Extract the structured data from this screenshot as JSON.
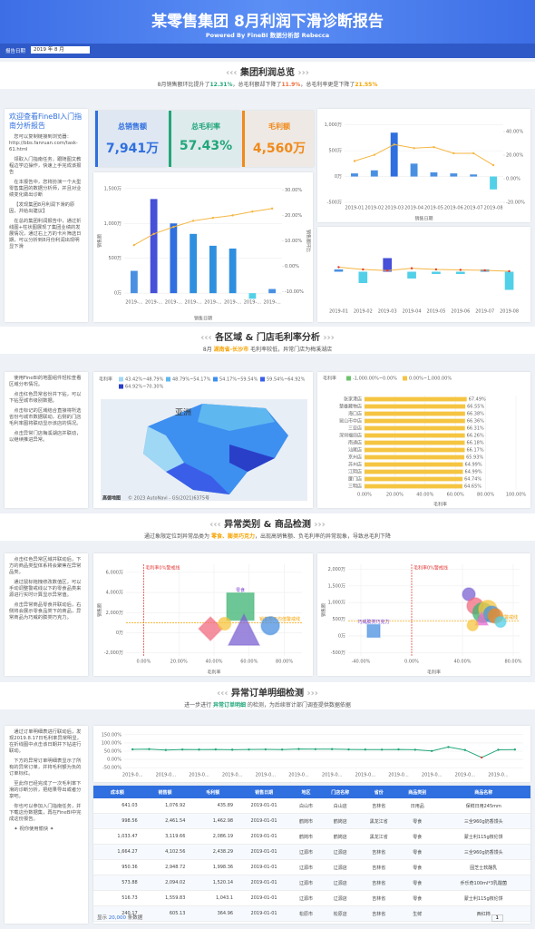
{
  "header": {
    "title": "某零售集团 8月利润下滑诊断报告",
    "subtitle": "Powered By FineBI 数据分析部 Rebecca",
    "filter_label": "报告日期",
    "filter_value": "2019 年 8 月"
  },
  "sections": [
    {
      "title": "集团利润总览",
      "summary": [
        {
          "text": "8月销售额环比提升了"
        },
        {
          "text": "12.31%",
          "color": "#21a67a"
        },
        {
          "text": "，总毛利额却下降了"
        },
        {
          "text": "11.9%",
          "color": "#f26b3a"
        },
        {
          "text": "，总毛利率更是下降了"
        },
        {
          "text": "21.55%",
          "color": "#f5a300"
        }
      ]
    },
    {
      "title": "各区域 & 门店毛利率分析",
      "summary": [
        {
          "text": "8月 "
        },
        {
          "text": "湖南省-长沙市",
          "color": "#f5a300"
        },
        {
          "text": " 毛利率较低，异常门店为梅溪湖店"
        }
      ]
    },
    {
      "title": "异常类别 & 商品检测",
      "summary": [
        {
          "text": "通过象限定位到异常品类为 "
        },
        {
          "text": "零食、膨类巧克力",
          "color": "#f5a300"
        },
        {
          "text": "，出现高销售额、负毛利率的异常现象，导致总毛利下降"
        }
      ]
    },
    {
      "title": "异常订单明细检测",
      "summary": [
        {
          "text": "进一步进行 "
        },
        {
          "text": "异常订单明细",
          "color": "#21a67a"
        },
        {
          "text": " 的检测，为后续审计部门调查提供数据依据"
        }
      ]
    }
  ],
  "notes": [
    {
      "title": "欢迎查看FineBI入门指南分析报告",
      "paragraphs": [
        "您可以复制链接到浏览器：http://bbs.fanruan.com/task-61.html",
        "领取入门指南任务，跟随图文教程边学边操作，快速上手完成该报告",
        "在本报告中，您将扮演一个大型零售集团的数据分析师，并且对业绩变化做出诊断",
        "【发现集团8月利润下滑的原因，并给出建议】",
        "在总的集团利润报告中，通过折线图+柱状图展现了集团业绩的发展情况，通过右上方的卡片筛选日期，可以分析到8月份利润出现明显下滑"
      ]
    },
    {
      "paragraphs": [
        "使用FineBI的地图组件轻松查看区域分布情况。",
        "点击红色异常省份并下钻，可以下钻至城市级别数据。",
        "点击标记的区域结合直接将所选省份与城市数据联动，右侧的门店毛利率图将联动显示该店的情况。",
        "点击异常门店梅溪湖店并联动，以继续推进异常。"
      ]
    },
    {
      "paragraphs": [
        "点击红色异常区域并联动后，下方的商品类型体系将会聚焦在异常品类。",
        "通过鼠标拖拽修改数值区，可以手动调整警戒线以下的零食品类来源进行实时计算显示异常值。",
        "点击异常商品零食并联动后，右侧将会展示零食品类下的商品，异常商品为巧威的膨类巧克力。"
      ]
    },
    {
      "paragraphs": [
        "通过订单明细表进行联动后，发现2019.8.17日毛利率异常明显，在折线图中点击该日期并下钻进行联动。",
        "下方的异常订单明细表显示了所有的异常订单，并将毛利额为负的订单标红。",
        "至此你已经完成了一次毛利率下滑的诊断分析，把结果导出或者分享吧。",
        "你也可以参加入门指南任务，并下载这份数据集，再在FineBI中完成这份报告。",
        "✦ 祝你使用愉快 ✦"
      ]
    }
  ],
  "kpis": [
    {
      "label": "总销售额",
      "value": "7,941万",
      "color": "#2f6fdf"
    },
    {
      "label": "总毛利率",
      "value": "57.43%",
      "color": "#21a67a"
    },
    {
      "label": "毛利额",
      "value": "4,560万",
      "color": "#f08a1c"
    }
  ],
  "chart_data": [
    {
      "type": "combo",
      "x_label": "销售日期",
      "categories": [
        "2019-01",
        "2019-02",
        "2019-03",
        "2019-04",
        "2019-05",
        "2019-06",
        "2019-07",
        "2019-08"
      ],
      "ylim": [
        -500,
        1100
      ],
      "yticks": [
        {
          "value": -500,
          "label": "-500万"
        },
        {
          "value": 0,
          "label": "0万"
        },
        {
          "value": 500,
          "label": "500万"
        },
        {
          "value": 1000,
          "label": "1,000万"
        }
      ],
      "y2lim": [
        -20,
        50
      ],
      "y2ticks": [
        {
          "value": -20,
          "label": "-20.00%"
        },
        {
          "value": 0,
          "label": "0.00%"
        },
        {
          "value": 20,
          "label": "20.00%"
        },
        {
          "value": 40,
          "label": "40.00%"
        }
      ],
      "series": [
        {
          "kind": "bar",
          "colors": [
            "#4a90e2",
            "#4a90e2",
            "#2f6fdf",
            "#4a90e2",
            "#4a90e2",
            "#4a90e2",
            "#4a90e2",
            "#52d0e8"
          ],
          "values": [
            60,
            120,
            850,
            250,
            80,
            60,
            40,
            -250
          ]
        },
        {
          "kind": "line",
          "color": "#f5b642",
          "values": [
            300,
            420,
            620,
            550,
            570,
            450,
            450,
            220
          ]
        }
      ]
    },
    {
      "type": "combo",
      "categories": [
        "2019-01",
        "2019-02",
        "2019-03",
        "2019-04",
        "2019-05",
        "2019-06",
        "2019-07",
        "2019-08"
      ],
      "ylim": [
        -15,
        15
      ],
      "series": [
        {
          "kind": "bar",
          "colors": [
            "#4a90e2",
            "#52d0e8",
            "#4650d8",
            "#52d0e8",
            "#52d0e8",
            "#52d0e8",
            "#4a90e2",
            "#52d0e8"
          ],
          "values": [
            1,
            -5,
            6,
            -3,
            -1,
            -1,
            1,
            -8
          ]
        },
        {
          "kind": "line",
          "color": "#f5b642",
          "values": [
            2,
            1,
            0.5,
            1.5,
            1,
            0.8,
            0.6,
            0.2
          ]
        }
      ]
    },
    {
      "type": "combo",
      "x_label": "销售日期",
      "y_label": "销售额",
      "y2_label": "销售额环比",
      "categories": [
        "2019-...",
        "2019-...",
        "2019-...",
        "2019-...",
        "2019-...",
        "2019-...",
        "2019-...",
        "2019-..."
      ],
      "ylim": [
        -50,
        1550
      ],
      "yticks": [
        {
          "value": 0,
          "label": "0万"
        },
        {
          "value": 500,
          "label": "500万"
        },
        {
          "value": 1000,
          "label": "1,000万"
        },
        {
          "value": 1500,
          "label": "1,500万"
        }
      ],
      "y2lim": [
        -12,
        32
      ],
      "y2ticks": [
        {
          "value": -10,
          "label": "-10.00%"
        },
        {
          "value": 0,
          "label": "0.00%"
        },
        {
          "value": 10,
          "label": "10.00%"
        },
        {
          "value": 20,
          "label": "20.00%"
        },
        {
          "value": 30,
          "label": "30.00%"
        }
      ],
      "series": [
        {
          "kind": "bar",
          "colors": [
            "#4a90e2",
            "#4650d8",
            "#2f6fdf",
            "#2f8fdf",
            "#2f8fdf",
            "#2f8fdf",
            "#52d0e8",
            "#4a90e2"
          ],
          "values": [
            320,
            1350,
            1000,
            850,
            680,
            640,
            -80,
            60
          ]
        },
        {
          "kind": "line",
          "color": "#f5b642",
          "values": [
            690,
            850,
            950,
            1037,
            1080,
            1116,
            1170,
            1214
          ]
        }
      ]
    },
    {
      "type": "hbar",
      "x_label": "毛利率",
      "legend_title": "毛利率",
      "legend": [
        {
          "name": "-1,000.00%~0.00%",
          "color": "#6cc36c"
        },
        {
          "name": "0.00%~1,000.00%",
          "color": "#f5c542"
        }
      ],
      "categories": [
        "张家港店",
        "楚雄藏物店",
        "海口店",
        "昆山市中店",
        "三亚店",
        "深圳福田店",
        "南通店",
        "汕尾店",
        "京州店",
        "苏州店",
        "江阴店",
        "厦门店",
        "三明店"
      ],
      "values": [
        67.49,
        66.55,
        66.38,
        66.36,
        66.31,
        66.26,
        66.18,
        66.17,
        65.93,
        64.99,
        64.99,
        64.74,
        64.65
      ],
      "value_labels": [
        "67.49%",
        "66.55%",
        "66.38%",
        "66.36%",
        "66.31%",
        "66.26%",
        "66.18%",
        "66.17%",
        "65.93%",
        "64.99%",
        "64.99%",
        "64.74%",
        "64.65%"
      ],
      "color": "#f5c542",
      "xlim": [
        0,
        100
      ],
      "xticks": [
        {
          "value": 0,
          "label": "0.00%"
        },
        {
          "value": 20,
          "label": "20.00%"
        },
        {
          "value": 40,
          "label": "40.00%"
        },
        {
          "value": 60,
          "label": "60.00%"
        },
        {
          "value": 80,
          "label": "80.00%"
        },
        {
          "value": 100,
          "label": "100.00%"
        }
      ]
    },
    {
      "type": "scatter",
      "x_label": "毛利率",
      "y_label": "销售额",
      "xlim": [
        -10,
        90
      ],
      "xticks": [
        {
          "value": 0,
          "label": "0.00%"
        },
        {
          "value": 20,
          "label": "20.00%"
        },
        {
          "value": 40,
          "label": "40.00%"
        },
        {
          "value": 60,
          "label": "60.00%"
        },
        {
          "value": 80,
          "label": "80.00%"
        }
      ],
      "ylim": [
        -2300,
        6800
      ],
      "yticks": [
        {
          "value": -2000,
          "label": "-2,000万"
        },
        {
          "value": 0,
          "label": "0万"
        },
        {
          "value": 2000,
          "label": "2,000万"
        },
        {
          "value": 4000,
          "label": "4,000万"
        },
        {
          "value": 6000,
          "label": "6,000万"
        }
      ],
      "x": [
        55,
        57,
        38,
        72,
        46
      ],
      "values": [
        2600,
        300,
        400,
        700,
        900
      ],
      "sizes": [
        30,
        34,
        26,
        20,
        14
      ],
      "colors": [
        "#3cb371",
        "#7b61d1",
        "#f06b7f",
        "#4a90e2",
        "#f5c542"
      ],
      "shapes": [
        "square",
        "triangle",
        "diamond",
        "circle",
        "circle"
      ],
      "point_labels": [
        "零食",
        null,
        null,
        null,
        null
      ],
      "ref_lines": [
        {
          "axis": "x",
          "value": 0,
          "label": "毛利率0%警戒线",
          "color": "#e53935"
        },
        {
          "axis": "y",
          "value": 1000,
          "label": "销售额平均值警戒线",
          "color": "#f5a300"
        }
      ]
    },
    {
      "type": "scatter",
      "x_label": "毛利率",
      "y_label": "销售额",
      "xlim": [
        -50,
        85
      ],
      "xticks": [
        {
          "value": -40,
          "label": "-40.00%"
        },
        {
          "value": 0,
          "label": "0.00%"
        },
        {
          "value": 40,
          "label": "40.00%"
        },
        {
          "value": 80,
          "label": "80.00%"
        }
      ],
      "ylim": [
        -600,
        2150
      ],
      "yticks": [
        {
          "value": -500,
          "label": "-500万"
        },
        {
          "value": 0,
          "label": "0万"
        },
        {
          "value": 500,
          "label": "500万"
        },
        {
          "value": 1000,
          "label": "1,000万"
        },
        {
          "value": 1500,
          "label": "1,500万"
        },
        {
          "value": 2000,
          "label": "2,000万"
        }
      ],
      "x": [
        -30,
        45,
        50,
        56,
        60,
        63,
        66,
        55,
        70,
        48
      ],
      "values": [
        150,
        1250,
        900,
        700,
        800,
        650,
        600,
        520,
        420,
        320
      ],
      "sizes": [
        14,
        14,
        18,
        22,
        20,
        18,
        16,
        14,
        12,
        12
      ],
      "colors": [
        "#4a90e2",
        "#7b61d1",
        "#f06b7f",
        "#3cb371",
        "#f5c542",
        "#4a90e2",
        "#f08a1c",
        "#e86bd6",
        "#52d0e8",
        "#f5c542"
      ],
      "shapes": [
        "square",
        "circle",
        "circle",
        "circle",
        "circle",
        "circle",
        "circle",
        "triangle",
        "circle",
        "circle"
      ],
      "point_labels": [
        "巧威膨类巧克力",
        null,
        null,
        null,
        null,
        null,
        null,
        null,
        null,
        null
      ],
      "ref_lines": [
        {
          "axis": "x",
          "value": 0,
          "label": "毛利率0%警戒线",
          "color": "#e53935"
        },
        {
          "axis": "y",
          "value": 450,
          "label": "销售额平均值警戒线",
          "color": "#f5a300"
        }
      ]
    },
    {
      "type": "line",
      "categories": [
        "2019-0...",
        null,
        "2019-0...",
        null,
        "2019-0...",
        null,
        "2019-0...",
        null,
        "2019-0...",
        null,
        "2019-0...",
        null,
        "2019-0...",
        null,
        "2019-0...",
        null,
        "2019-0...",
        null,
        "2019-0...",
        null,
        "2019-0...",
        null,
        "2019-0...",
        null
      ],
      "ylim": [
        -60,
        160
      ],
      "yticks": [
        {
          "value": -50,
          "label": "-50.00%"
        },
        {
          "value": 0,
          "label": "0.00%"
        },
        {
          "value": 50,
          "label": "50.00%"
        },
        {
          "value": 100,
          "label": "100.00%"
        },
        {
          "value": 150,
          "label": "150.00%"
        }
      ],
      "color": "#21a67a",
      "values": [
        61.05,
        62.39,
        57.14,
        60.08,
        59.64,
        60.47,
        58.93,
        60.0,
        60.79,
        59.82,
        63.07,
        62.23,
        62.36,
        60.57,
        59.7,
        59.54,
        60.45,
        58.84,
        51.18,
        75.33,
        57.0,
        12.0,
        58.5,
        59.9
      ]
    }
  ],
  "map": {
    "legend_title": "毛利率",
    "legend": [
      {
        "label": "43.42%~48.79%",
        "color": "#9fd8f5"
      },
      {
        "label": "48.79%~54.17%",
        "color": "#5fb7f0"
      },
      {
        "label": "54.17%~59.54%",
        "color": "#3d8ff0"
      },
      {
        "label": "59.54%~64.92%",
        "color": "#3a5ee8"
      },
      {
        "label": "64.92%~70.30%",
        "color": "#2a3fc8"
      }
    ],
    "region_label": "亚洲",
    "credit": "高德地图",
    "copyright": "© 2023 AutoNavi - GS(2021)6375号"
  },
  "table": {
    "headers": [
      "成本额",
      "销售额",
      "毛利额",
      "销售日期",
      "地区",
      "门店名称",
      "省份",
      "商品类别",
      "商品名称"
    ],
    "rows": [
      [
        "641.03",
        "1,076.92",
        "435.89",
        "2019-01-01",
        "白山市",
        "白山店",
        "吉林省",
        "日用品",
        "保鲜日用245mm"
      ],
      [
        "998.56",
        "2,461.54",
        "1,462.98",
        "2019-01-01",
        "鹤岗市",
        "鹤岗店",
        "黑龙江省",
        "零食",
        "三全960g奶香馒头"
      ],
      [
        "1,033.47",
        "3,119.66",
        "2,086.19",
        "2019-01-01",
        "鹤岗市",
        "鹤岗店",
        "黑龙江省",
        "零食",
        "蒙士利115g核伦饼"
      ],
      [
        "1,664.27",
        "4,102.56",
        "2,438.29",
        "2019-01-01",
        "辽源市",
        "辽源店",
        "吉林省",
        "零食",
        "三全960g奶香馒头"
      ],
      [
        "950.36",
        "2,948.72",
        "1,998.36",
        "2019-01-01",
        "辽源市",
        "辽源店",
        "吉林省",
        "零食",
        "固芝士软酪乳"
      ],
      [
        "573.88",
        "2,094.02",
        "1,520.14",
        "2019-01-01",
        "辽源市",
        "辽源店",
        "吉林省",
        "零食",
        "乔乐奇100ml*3乳酸菌"
      ],
      [
        "516.73",
        "1,559.83",
        "1,043.1",
        "2019-01-01",
        "辽源市",
        "辽源店",
        "吉林省",
        "零食",
        "蒙士利115g核伦饼"
      ],
      [
        "240.17",
        "605.13",
        "364.96",
        "2019-01-01",
        "松原市",
        "松原店",
        "吉林省",
        "生鲜",
        "西红柿"
      ]
    ],
    "footer": {
      "prefix": "显示",
      "count": "20,000",
      "suffix": "条数据",
      "page": "1"
    }
  }
}
